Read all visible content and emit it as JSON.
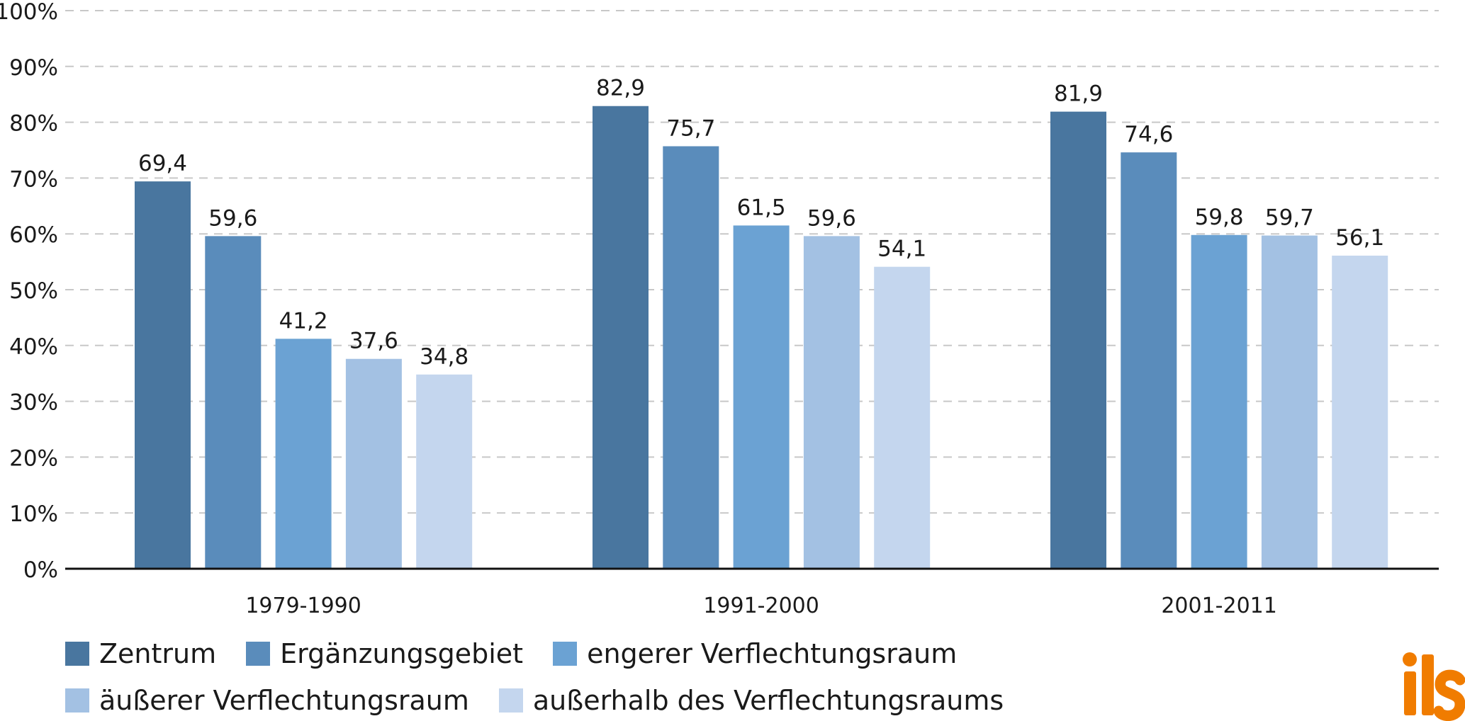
{
  "chart_data": {
    "type": "bar",
    "categories": [
      "1979-1990",
      "1991-2000",
      "2001-2011"
    ],
    "series": [
      {
        "name": "Zentrum",
        "color": "#49769f",
        "values": [
          69.4,
          82.9,
          81.9
        ],
        "labels": [
          "69,4",
          "82,9",
          "81,9"
        ]
      },
      {
        "name": "Ergänzungsgebiet",
        "color": "#5a8cbb",
        "values": [
          59.6,
          75.7,
          74.6
        ],
        "labels": [
          "59,6",
          "75,7",
          "74,6"
        ]
      },
      {
        "name": "engerer Verflechtungsraum",
        "color": "#6ba2d3",
        "values": [
          41.2,
          61.5,
          59.8
        ],
        "labels": [
          "41,2",
          "61,5",
          "59,8"
        ]
      },
      {
        "name": "äußerer Verflechtungsraum",
        "color": "#a3c1e3",
        "values": [
          37.6,
          59.6,
          59.7
        ],
        "labels": [
          "37,6",
          "59,6",
          "59,7"
        ]
      },
      {
        "name": "außerhalb des Verflechtungsraums",
        "color": "#c4d6ee",
        "values": [
          34.8,
          54.1,
          56.1
        ],
        "labels": [
          "34,8",
          "54,1",
          "56,1"
        ]
      }
    ],
    "yticks": [
      0,
      10,
      20,
      30,
      40,
      50,
      60,
      70,
      80,
      90,
      100
    ],
    "ytick_labels": [
      "0%",
      "10%",
      "20%",
      "30%",
      "40%",
      "50%",
      "60%",
      "70%",
      "80%",
      "90%",
      "100%"
    ],
    "ylim": [
      0,
      100
    ],
    "grid": "horizontal dashed",
    "legend_position": "bottom"
  },
  "colors": {
    "axis": "#111111",
    "grid": "#c8c8c8",
    "text": "#1a1a1a",
    "logo": "#f07c00"
  },
  "logo": {
    "text": "ils",
    "icon": "ils-logo"
  }
}
